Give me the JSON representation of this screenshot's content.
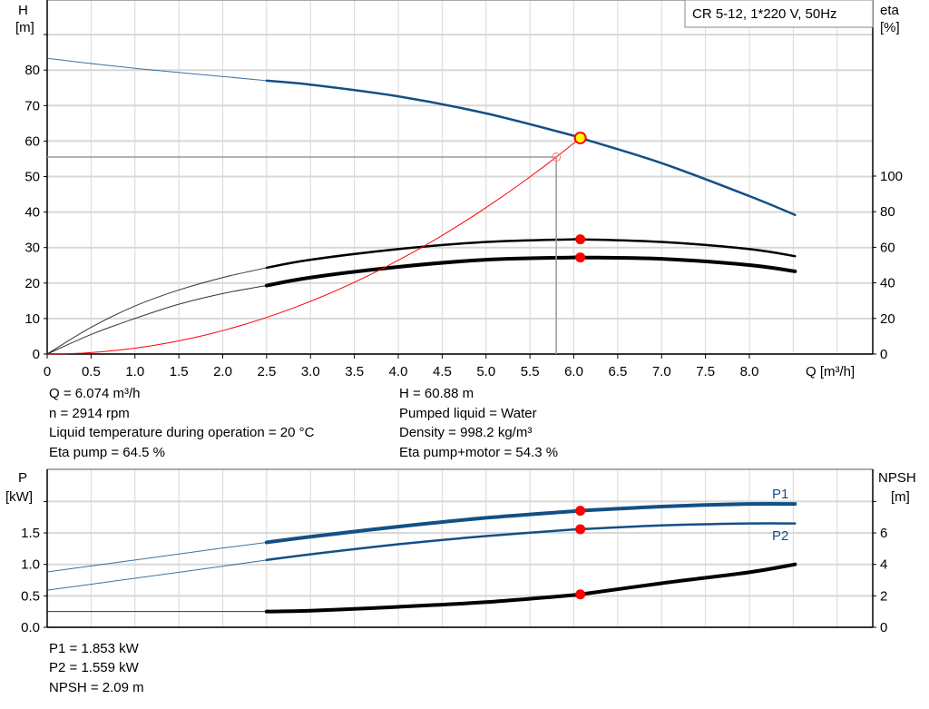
{
  "chart_data": [
    {
      "type": "line",
      "title": "CR 5-12, 1*220 V, 50Hz",
      "xlabel": "Q [m³/h]",
      "ylabel_left": [
        "H",
        "[m]"
      ],
      "ylabel_right": [
        "eta",
        "[%]"
      ],
      "xlim": [
        0,
        9.5
      ],
      "ylim_left": [
        0,
        90
      ],
      "ylim_right": [
        0,
        100
      ],
      "x_ticks": [
        "0",
        "0.5",
        "1.0",
        "1.5",
        "2.0",
        "2.5",
        "3.0",
        "3.5",
        "4.0",
        "4.5",
        "5.0",
        "5.5",
        "6.0",
        "6.5",
        "7.0",
        "7.5",
        "8.0"
      ],
      "y_ticks_left": [
        "0",
        "10",
        "20",
        "30",
        "40",
        "50",
        "60",
        "70",
        "80"
      ],
      "y_ticks_right": [
        "0",
        "20",
        "40",
        "60",
        "80",
        "100"
      ],
      "grid": true,
      "series": [
        {
          "axis": "left",
          "color": "#134f86",
          "thin_until": 2.5,
          "x": [
            0,
            1,
            2,
            2.5,
            3,
            4,
            5,
            6,
            6.074,
            7,
            8,
            8.52
          ],
          "y": [
            83.3,
            80.5,
            78.2,
            77,
            75.9,
            72.6,
            67.8,
            61.5,
            60.88,
            53.8,
            44.5,
            39.2
          ]
        },
        {
          "axis": "right",
          "color": "#000000",
          "thin_until": 2.5,
          "x": [
            0,
            0.5,
            1,
            1.5,
            2,
            2.5,
            3,
            4,
            5,
            6,
            6.074,
            7,
            8,
            8.52
          ],
          "y": [
            0,
            15,
            27,
            36,
            43,
            48.5,
            53,
            59,
            63,
            64.5,
            64.5,
            63,
            59,
            55
          ]
        },
        {
          "axis": "right",
          "color": "#000000",
          "thin_until": 2.5,
          "thick": true,
          "x": [
            0,
            0.5,
            1,
            1.5,
            2,
            2.5,
            3,
            4,
            5,
            6,
            6.074,
            7,
            8,
            8.52
          ],
          "y": [
            0,
            11,
            20,
            28,
            34,
            38.5,
            43,
            49,
            53,
            54.3,
            54.3,
            53.5,
            50,
            46.5
          ]
        }
      ],
      "system_curve": {
        "color": "#ff0000",
        "x_end": 6.074,
        "y_end": 60.88,
        "through": [
          5.8,
          55.5
        ]
      },
      "duty_point": {
        "Q": 6.074,
        "H": 60.88,
        "eta_pump": 64.5,
        "eta_total": 54.3
      }
    },
    {
      "type": "line",
      "ylabel_left": [
        "P",
        "[kW]"
      ],
      "ylabel_right": [
        "NPSH",
        "[m]"
      ],
      "xlim": [
        0,
        9.5
      ],
      "ylim_left": [
        0,
        2.5
      ],
      "ylim_right": [
        0,
        10
      ],
      "y_ticks_left": [
        "0.0",
        "0.5",
        "1.0",
        "1.5",
        ""
      ],
      "y_ticks_right": [
        "0",
        "2",
        "4",
        "6",
        ""
      ],
      "grid": true,
      "series": [
        {
          "name": "P1",
          "axis": "left",
          "color": "#134f86",
          "thin_until": 2.5,
          "thick": true,
          "x": [
            0,
            1,
            2,
            2.5,
            3,
            4,
            5,
            6,
            6.074,
            7,
            8,
            8.52
          ],
          "y": [
            0.88,
            1.07,
            1.26,
            1.35,
            1.44,
            1.6,
            1.74,
            1.845,
            1.853,
            1.92,
            1.96,
            1.96
          ]
        },
        {
          "name": "P2",
          "axis": "left",
          "color": "#134f86",
          "thin_until": 2.5,
          "x": [
            0,
            1,
            2,
            2.5,
            3,
            4,
            5,
            6,
            6.074,
            7,
            8,
            8.52
          ],
          "y": [
            0.59,
            0.78,
            0.97,
            1.07,
            1.16,
            1.32,
            1.45,
            1.555,
            1.559,
            1.62,
            1.65,
            1.65
          ]
        },
        {
          "axis": "right",
          "color": "#000000",
          "thin_until": 2.5,
          "thick": true,
          "x": [
            0,
            2.5,
            3,
            4,
            5,
            6,
            6.074,
            7,
            8,
            8.52
          ],
          "y": [
            1.0,
            1.0,
            1.05,
            1.3,
            1.6,
            2.05,
            2.09,
            2.8,
            3.5,
            4.0
          ]
        }
      ],
      "duty_point": {
        "Q": 6.074,
        "P1": 1.853,
        "P2": 1.559,
        "NPSH": 2.09
      }
    }
  ],
  "readouts_top": {
    "q": "Q = 6.074 m³/h",
    "n": "n = 2914 rpm",
    "temp": "Liquid temperature during operation = 20 °C",
    "eta_pump": "Eta pump = 64.5 %",
    "h": "H = 60.88 m",
    "liquid": "Pumped liquid = Water",
    "density": "Density = 998.2 kg/m³",
    "eta_total": "Eta pump+motor = 54.3 %"
  },
  "readouts_bottom": {
    "p1": "P1 = 1.853 kW",
    "p2": "P2 = 1.559 kW",
    "npsh": "NPSH = 2.09 m"
  }
}
